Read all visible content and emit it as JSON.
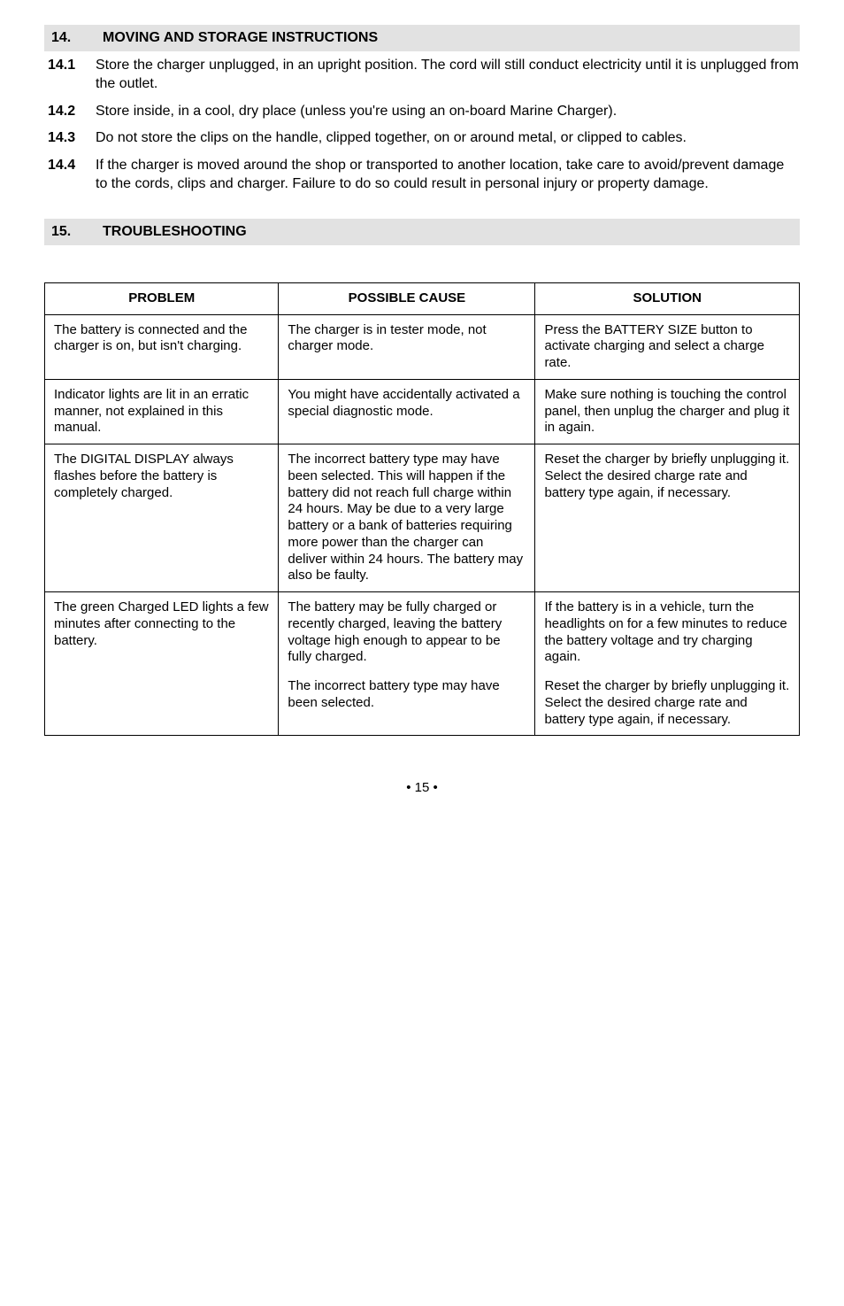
{
  "sections": {
    "s14": {
      "num": "14.",
      "title": "MOVING AND STORAGE INSTRUCTIONS",
      "items": [
        {
          "num": "14.1",
          "text": "Store the charger unplugged, in an upright position. The cord will still conduct electricity until it is unplugged from the outlet."
        },
        {
          "num": "14.2",
          "text": "Store inside, in a cool, dry place (unless you're using an on-board Marine Charger)."
        },
        {
          "num": "14.3",
          "text": "Do not store the clips on the handle, clipped together, on or around metal, or clipped to cables."
        },
        {
          "num": "14.4",
          "text": "If the charger is moved around the shop or transported to another location, take care to avoid/prevent damage to the cords, clips and charger. Failure to do so could result in personal injury or property damage."
        }
      ]
    },
    "s15": {
      "num": "15.",
      "title": "TROUBLESHOOTING"
    }
  },
  "table": {
    "headers": {
      "c1": "PROBLEM",
      "c2": "POSSIBLE CAUSE",
      "c3": "SOLUTION"
    },
    "rows": [
      {
        "problem": "The battery is connected and the charger is on, but isn't charging.",
        "cause": "The charger is in tester mode, not charger mode.",
        "solution": "Press the BATTERY SIZE button to activate charging and select a charge rate."
      },
      {
        "problem": "Indicator lights are lit in an erratic manner, not explained in this manual.",
        "cause": "You might have accidentally activated a special diagnostic mode.",
        "solution": "Make sure nothing is touching the control panel, then unplug the charger and plug it in again."
      },
      {
        "problem": "The DIGITAL DISPLAY always flashes before the battery is completely charged.",
        "cause": "The incorrect battery type may have been selected. This will happen if the battery did not reach full charge within 24 hours. May be due to a very large battery or a bank of batteries requiring more power than the charger can deliver within 24 hours. The battery may also be faulty.",
        "solution": "Reset the charger by briefly unplugging it. Select the desired charge rate and battery type again, if necessary."
      },
      {
        "problem": "The green Charged LED lights a few minutes after connecting to the battery.",
        "cause_a": "The battery may be fully charged or recently charged, leaving the battery voltage high enough to appear to be fully charged.",
        "cause_b": "The incorrect battery type may have been selected.",
        "solution_a": "If the battery is in a vehicle, turn the headlights on for a few minutes to reduce the battery voltage and try charging again.",
        "solution_b": "Reset the charger by briefly unplugging it. Select the desired charge rate and battery type again, if necessary."
      }
    ]
  },
  "pagenum": "• 15 •"
}
